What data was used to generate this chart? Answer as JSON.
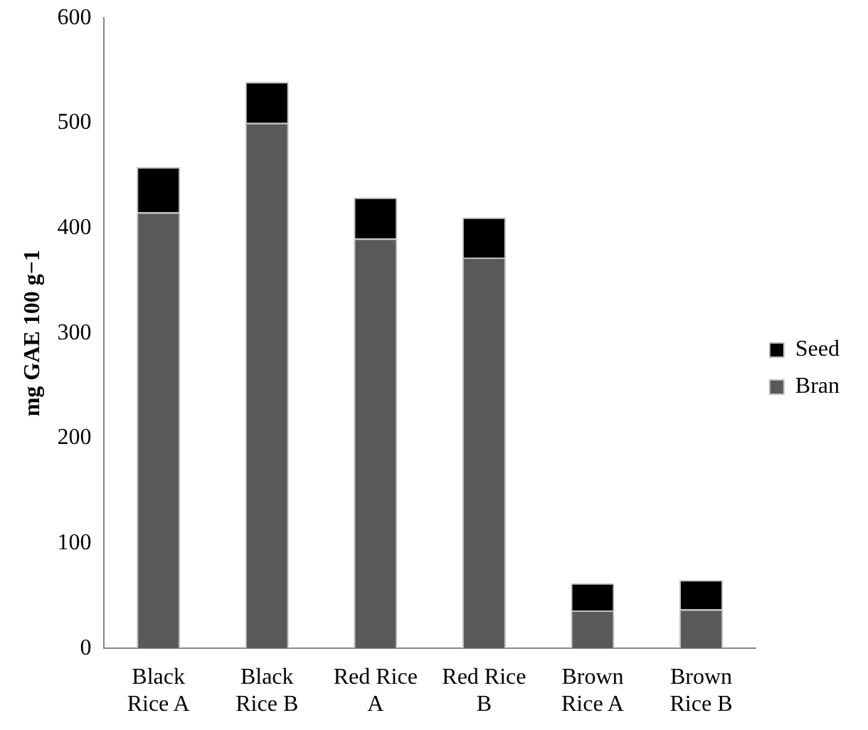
{
  "chart_data": {
    "type": "bar",
    "stacked": true,
    "ylabel": "mg GAE 100 g−1",
    "categories": [
      "Black Rice A",
      "Black Rice B",
      "Red Rice A",
      "Red Rice B",
      "Brown Rice A",
      "Brown Rice B"
    ],
    "series": [
      {
        "name": "Bran",
        "color": "#595959",
        "values": [
          415,
          500,
          390,
          372,
          36,
          37
        ]
      },
      {
        "name": "Seed",
        "color": "#000000",
        "values": [
          43,
          39,
          39,
          38,
          26,
          28
        ]
      }
    ],
    "ylim": [
      0,
      600
    ],
    "yticks": [
      0,
      100,
      200,
      300,
      400,
      500,
      600
    ],
    "grid": false,
    "legend": "right"
  }
}
